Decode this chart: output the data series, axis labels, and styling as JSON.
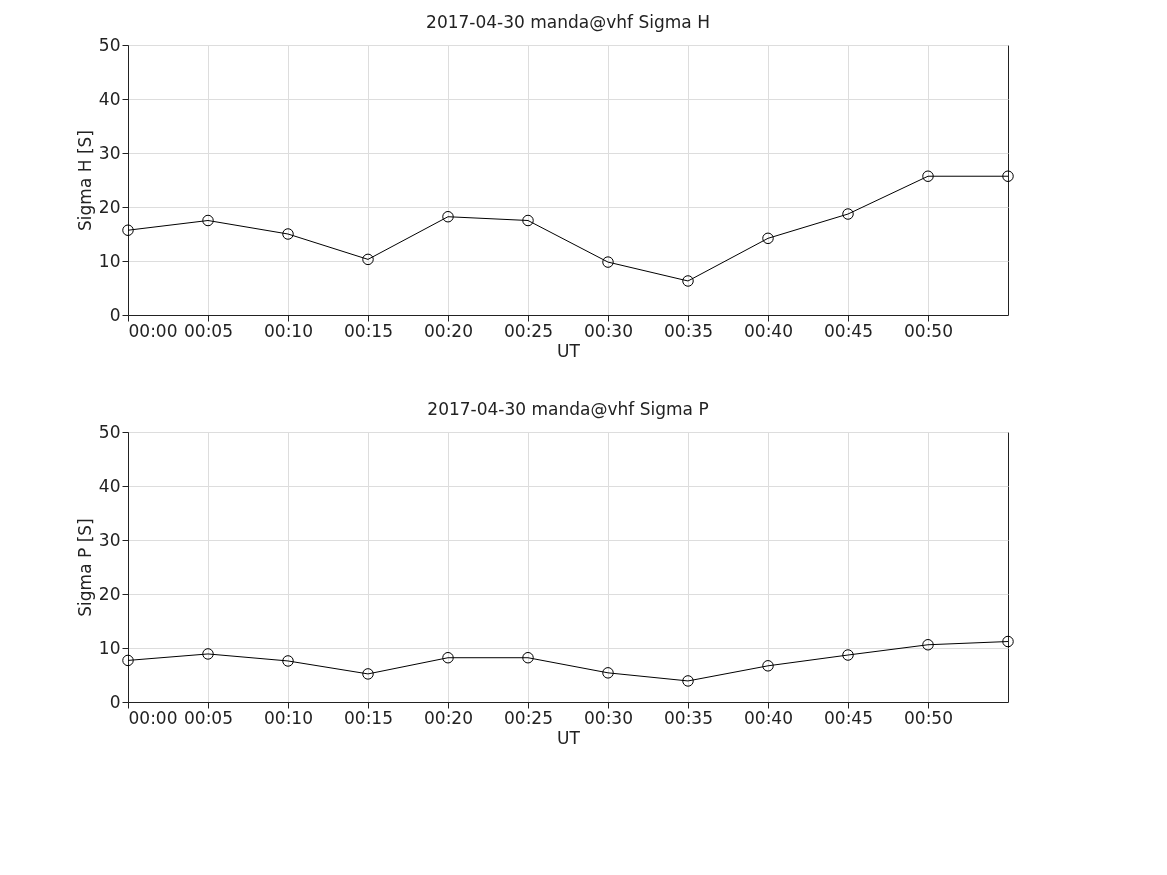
{
  "chart_data": [
    {
      "type": "line",
      "title": "2017-04-30  manda@vhf Sigma H",
      "xlabel": "UT",
      "ylabel": "Sigma H [S]",
      "x": [
        "2017-04-30T00:00",
        "2017-04-30T00:05",
        "2017-04-30T00:10",
        "2017-04-30T00:15",
        "2017-04-30T00:20",
        "2017-04-30T00:25",
        "2017-04-30T00:30",
        "2017-04-30T00:35",
        "2017-04-30T00:40",
        "2017-04-30T00:45",
        "2017-04-30T00:50",
        "2017-04-30T00:55"
      ],
      "series": [
        {
          "color": "#000000",
          "values": [
            15.7,
            17.5,
            15,
            10.3,
            18.2,
            17.5,
            9.8,
            6.3,
            14.2,
            18.7,
            25.7,
            25.7
          ]
        }
      ],
      "xlim": [
        "2017-04-30T00:00",
        "2017-04-30T00:55"
      ],
      "xticks": [
        {
          "value": "2017-04-30T00:00",
          "label": "00:00"
        },
        {
          "value": "2017-04-30T00:05",
          "label": "00:05"
        },
        {
          "value": "2017-04-30T00:10",
          "label": "00:10"
        },
        {
          "value": "2017-04-30T00:15",
          "label": "00:15"
        },
        {
          "value": "2017-04-30T00:20",
          "label": "00:20"
        },
        {
          "value": "2017-04-30T00:25",
          "label": "00:25"
        },
        {
          "value": "2017-04-30T00:30",
          "label": "00:30"
        },
        {
          "value": "2017-04-30T00:35",
          "label": "00:35"
        },
        {
          "value": "2017-04-30T00:40",
          "label": "00:40"
        },
        {
          "value": "2017-04-30T00:45",
          "label": "00:45"
        },
        {
          "value": "2017-04-30T00:50",
          "label": "00:50"
        }
      ],
      "ylim": [
        0,
        50
      ],
      "yticks": [
        0,
        10,
        20,
        30,
        40,
        50
      ],
      "grid": true,
      "marker": "circle",
      "line_style": "solid"
    },
    {
      "type": "line",
      "title": "2017-04-30  manda@vhf Sigma P",
      "xlabel": "UT",
      "ylabel": "Sigma P [S]",
      "x": [
        "2017-04-30T00:00",
        "2017-04-30T00:05",
        "2017-04-30T00:10",
        "2017-04-30T00:15",
        "2017-04-30T00:20",
        "2017-04-30T00:25",
        "2017-04-30T00:30",
        "2017-04-30T00:35",
        "2017-04-30T00:40",
        "2017-04-30T00:45",
        "2017-04-30T00:50",
        "2017-04-30T00:55"
      ],
      "series": [
        {
          "color": "#000000",
          "values": [
            7.7,
            8.9,
            7.6,
            5.2,
            8.2,
            8.2,
            5.4,
            3.9,
            6.7,
            8.7,
            10.6,
            11.2
          ]
        }
      ],
      "xlim": [
        "2017-04-30T00:00",
        "2017-04-30T00:55"
      ],
      "xticks": [
        {
          "value": "2017-04-30T00:00",
          "label": "00:00"
        },
        {
          "value": "2017-04-30T00:05",
          "label": "00:05"
        },
        {
          "value": "2017-04-30T00:10",
          "label": "00:10"
        },
        {
          "value": "2017-04-30T00:15",
          "label": "00:15"
        },
        {
          "value": "2017-04-30T00:20",
          "label": "00:20"
        },
        {
          "value": "2017-04-30T00:25",
          "label": "00:25"
        },
        {
          "value": "2017-04-30T00:30",
          "label": "00:30"
        },
        {
          "value": "2017-04-30T00:35",
          "label": "00:35"
        },
        {
          "value": "2017-04-30T00:40",
          "label": "00:40"
        },
        {
          "value": "2017-04-30T00:45",
          "label": "00:45"
        },
        {
          "value": "2017-04-30T00:50",
          "label": "00:50"
        }
      ],
      "ylim": [
        0,
        50
      ],
      "yticks": [
        0,
        10,
        20,
        30,
        40,
        50
      ],
      "grid": true,
      "marker": "circle",
      "line_style": "solid"
    }
  ]
}
